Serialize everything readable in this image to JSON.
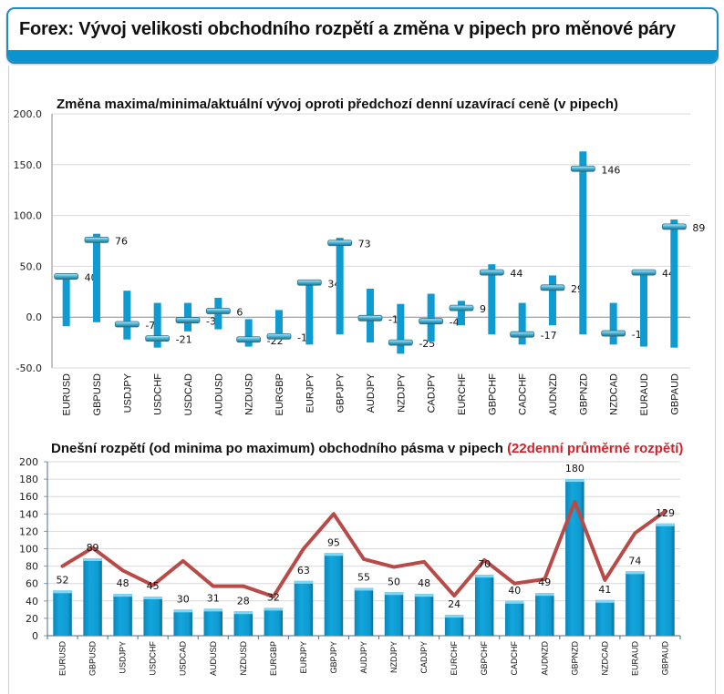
{
  "page": {
    "title": "Forex: Vývoj velikosti obchodního rozpětí a změna v pipech pro měnové páry"
  },
  "colors": {
    "header_border": "#1e8cc4",
    "header_bar": "#0a93cf",
    "bar": "#0e9bd1",
    "line": "#b84a48",
    "title_red": "#d2232a"
  },
  "chart_data": [
    {
      "type": "bar",
      "subtype": "high-low-close",
      "title": "Změna maxima/minima/aktuální vývoj oproti předchozí denní uzavírací ceně (v pipech)",
      "xlabel": "",
      "ylabel": "",
      "ylim": [
        -50,
        200
      ],
      "yticks": [
        "200.0",
        "150.0",
        "100.0",
        "50.0",
        "0.0",
        "-50.0"
      ],
      "ytick_values": [
        200,
        150,
        100,
        50,
        0,
        -50
      ],
      "grid": true,
      "categories": [
        "EURUSD",
        "GBPUSD",
        "USDJPY",
        "USDCHF",
        "USDCAD",
        "AUDUSD",
        "NZDUSD",
        "EURGBP",
        "EURJPY",
        "GBPJPY",
        "AUDJPY",
        "NZDJPY",
        "CADJPY",
        "EURCHF",
        "GBPCHF",
        "CADCHF",
        "AUDNZD",
        "GBPNZD",
        "NZDCAD",
        "EURAUD",
        "GBPAUD"
      ],
      "series": [
        {
          "name": "high",
          "values": [
            42,
            82,
            26,
            14,
            14,
            19,
            -2,
            7,
            36,
            78,
            28,
            13,
            23,
            16,
            52,
            14,
            41,
            163,
            14,
            45,
            96
          ]
        },
        {
          "name": "low",
          "values": [
            -9,
            -5,
            -22,
            -30,
            -14,
            -12,
            -29,
            -21,
            -27,
            -17,
            -25,
            -36,
            -24,
            -8,
            -17,
            -27,
            -8,
            -17,
            -27,
            -29,
            -30
          ]
        },
        {
          "name": "current",
          "values": [
            40,
            76,
            -7,
            -21,
            -3,
            6,
            -22,
            -19,
            34,
            73,
            -1,
            -25,
            -4,
            9,
            44,
            -17,
            29,
            146,
            -16,
            44,
            89
          ]
        }
      ],
      "data_labels": [
        "40",
        "76",
        "-7",
        "-21",
        "-3",
        "6",
        "-22",
        "-19",
        "34",
        "73",
        "-1",
        "-25",
        "-4",
        "9",
        "44",
        "-17",
        "29",
        "146",
        "-16",
        "44",
        "89"
      ]
    },
    {
      "type": "bar",
      "subtype": "bar-with-line",
      "title": "Dnešní rozpětí (od minima po maximum) obchodního pásma v pipech",
      "title_highlight": "(22denní průměrné rozpětí)",
      "xlabel": "",
      "ylabel": "",
      "ylim": [
        0,
        200
      ],
      "yticks": [
        "200",
        "180",
        "160",
        "140",
        "120",
        "100",
        "80",
        "60",
        "40",
        "20",
        "0"
      ],
      "ytick_values": [
        200,
        180,
        160,
        140,
        120,
        100,
        80,
        60,
        40,
        20,
        0
      ],
      "grid": true,
      "categories": [
        "EURUSD",
        "GBPUSD",
        "USDJPY",
        "USDCHF",
        "USDCAD",
        "AUDUSD",
        "NZDUSD",
        "EURGBP",
        "EURJPY",
        "GBPJPY",
        "AUDJPY",
        "NZDJPY",
        "CADJPY",
        "EURCHF",
        "GBPCHF",
        "CADCHF",
        "AUDNZD",
        "GBPNZD",
        "NZDCAD",
        "EURAUD",
        "GBPAUD"
      ],
      "series": [
        {
          "name": "Dnešní rozpětí",
          "type": "bar",
          "values": [
            52,
            89,
            48,
            45,
            30,
            31,
            28,
            32,
            63,
            95,
            55,
            50,
            48,
            24,
            70,
            40,
            49,
            180,
            41,
            74,
            129
          ]
        },
        {
          "name": "22denní průměrné rozpětí",
          "type": "line",
          "values": [
            80,
            101,
            75,
            58,
            86,
            57,
            57,
            45,
            100,
            140,
            88,
            79,
            85,
            46,
            87,
            60,
            65,
            154,
            64,
            118,
            143
          ]
        }
      ],
      "data_labels": [
        "52",
        "89",
        "48",
        "45",
        "30",
        "31",
        "28",
        "32",
        "63",
        "95",
        "55",
        "50",
        "48",
        "24",
        "70",
        "40",
        "49",
        "180",
        "41",
        "74",
        "129"
      ]
    }
  ]
}
